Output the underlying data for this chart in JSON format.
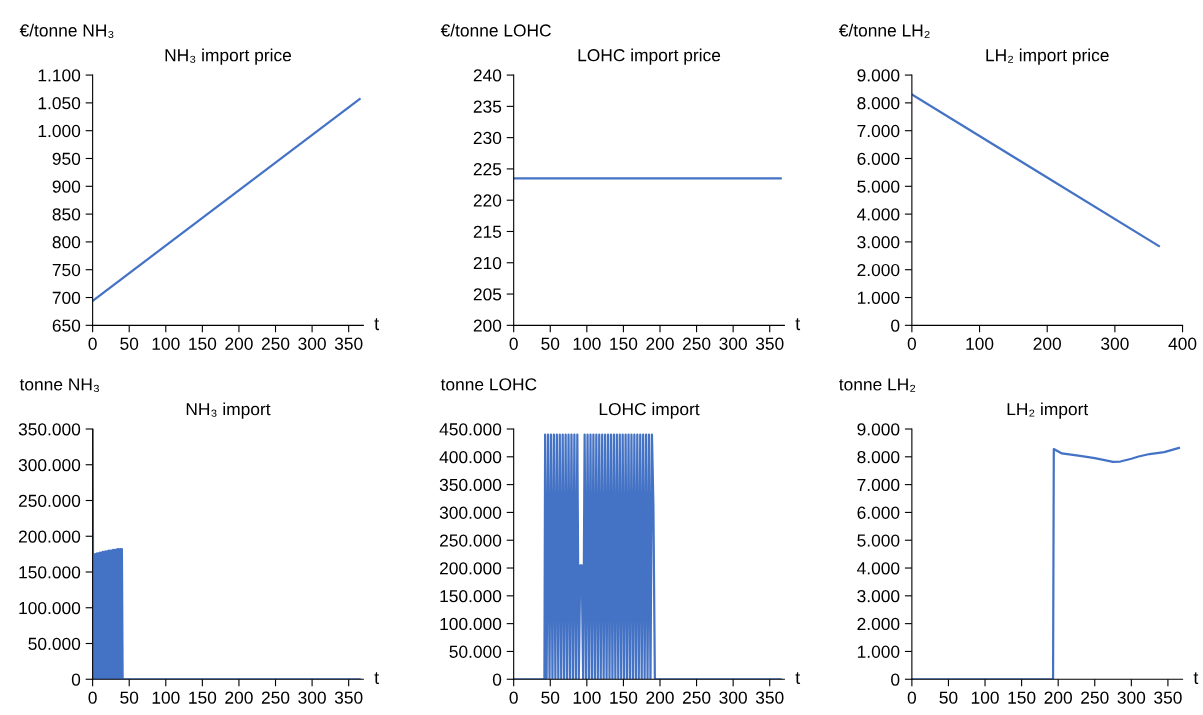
{
  "chart_data": [
    {
      "type": "line",
      "title": "NH₃ import price",
      "ylabel": "€/tonne NH₃",
      "xlabel": "t",
      "grid": false,
      "legend": false,
      "x": [
        0,
        365
      ],
      "series": [
        {
          "color": "#4472c4",
          "values": [
            694,
            1057
          ]
        }
      ],
      "xlim": [
        0,
        370
      ],
      "xticks": [
        0,
        50,
        100,
        150,
        200,
        250,
        300,
        350
      ],
      "ylim": [
        650,
        1100
      ],
      "yticks": [
        650,
        700,
        750,
        800,
        850,
        900,
        950,
        {
          "value": 1000,
          "label": "1.000"
        },
        {
          "value": 1050,
          "label": "1.050"
        },
        {
          "value": 1100,
          "label": "1.100"
        }
      ]
    },
    {
      "type": "line",
      "title": "LOHC import price",
      "ylabel": "€/tonne LOHC",
      "xlabel": "t",
      "grid": false,
      "legend": false,
      "x": [
        0,
        365
      ],
      "series": [
        {
          "color": "#4472c4",
          "values": [
            223.5,
            223.5
          ]
        }
      ],
      "xlim": [
        0,
        370
      ],
      "xticks": [
        0,
        50,
        100,
        150,
        200,
        250,
        300,
        350
      ],
      "ylim": [
        200,
        240
      ],
      "yticks": [
        200,
        205,
        210,
        215,
        220,
        225,
        230,
        235,
        240
      ]
    },
    {
      "type": "line",
      "title": "LH₂ import price",
      "ylabel": "€/tonne LH₂",
      "grid": false,
      "legend": false,
      "x": [
        0,
        365
      ],
      "series": [
        {
          "color": "#4472c4",
          "values": [
            8300,
            2850
          ]
        }
      ],
      "xlim": [
        0,
        400
      ],
      "xticks": [
        0,
        100,
        200,
        300,
        400
      ],
      "ylim": [
        0,
        9000
      ],
      "yticks": [
        0,
        {
          "value": 1000,
          "label": "1.000"
        },
        {
          "value": 2000,
          "label": "2.000"
        },
        {
          "value": 3000,
          "label": "3.000"
        },
        {
          "value": 4000,
          "label": "4.000"
        },
        {
          "value": 5000,
          "label": "5.000"
        },
        {
          "value": 6000,
          "label": "6.000"
        },
        {
          "value": 7000,
          "label": "7.000"
        },
        {
          "value": 8000,
          "label": "8.000"
        },
        {
          "value": 9000,
          "label": "9.000"
        }
      ]
    },
    {
      "type": "line",
      "title": "NH₃ import",
      "ylabel": "tonne NH₃",
      "xlabel": "t",
      "grid": false,
      "legend": false,
      "x": [
        0,
        1,
        2,
        3,
        4,
        5,
        6,
        7,
        8,
        9,
        10,
        11,
        12,
        13,
        14,
        15,
        16,
        17,
        18,
        19,
        20,
        21,
        22,
        23,
        24,
        25,
        26,
        27,
        28,
        29,
        30,
        31,
        32,
        33,
        34,
        35,
        36,
        37,
        38,
        39,
        40,
        41,
        365
      ],
      "series": [
        {
          "color": "#4472c4",
          "values": [
            350000,
            0,
            175000,
            0,
            175000,
            0,
            176000,
            0,
            176000,
            0,
            177000,
            0,
            177000,
            0,
            178000,
            0,
            178000,
            0,
            179000,
            0,
            179000,
            0,
            180000,
            0,
            180000,
            0,
            180000,
            0,
            181000,
            0,
            181000,
            0,
            181000,
            0,
            182000,
            0,
            182000,
            0,
            182000,
            0,
            182000,
            0,
            0
          ]
        }
      ],
      "xlim": [
        0,
        370
      ],
      "xticks": [
        0,
        50,
        100,
        150,
        200,
        250,
        300,
        350
      ],
      "ylim": [
        0,
        350000
      ],
      "yticks": [
        0,
        {
          "value": 50000,
          "label": "50.000"
        },
        {
          "value": 100000,
          "label": "100.000"
        },
        {
          "value": 150000,
          "label": "150.000"
        },
        {
          "value": 200000,
          "label": "200.000"
        },
        {
          "value": 250000,
          "label": "250.000"
        },
        {
          "value": 300000,
          "label": "300.000"
        },
        {
          "value": 350000,
          "label": "350.000"
        }
      ]
    },
    {
      "type": "line",
      "title": "LOHC import",
      "ylabel": "tonne LOHC",
      "xlabel": "t",
      "grid": false,
      "legend": false,
      "x": [
        0,
        42,
        43,
        45,
        47,
        49,
        51,
        53,
        55,
        57,
        59,
        61,
        63,
        65,
        67,
        69,
        71,
        73,
        75,
        77,
        79,
        81,
        83,
        85,
        87,
        89,
        91,
        93,
        95,
        97,
        99,
        101,
        103,
        105,
        107,
        109,
        111,
        113,
        115,
        117,
        119,
        121,
        123,
        125,
        127,
        129,
        131,
        133,
        135,
        137,
        139,
        141,
        143,
        145,
        147,
        149,
        151,
        153,
        155,
        157,
        159,
        161,
        163,
        165,
        167,
        169,
        171,
        173,
        175,
        177,
        179,
        181,
        183,
        185,
        187,
        189,
        191,
        193,
        365
      ],
      "series": [
        {
          "color": "#4472c4",
          "values": [
            0,
            0,
            440000,
            0,
            440000,
            0,
            440000,
            0,
            440000,
            0,
            440000,
            0,
            440000,
            0,
            440000,
            0,
            440000,
            0,
            440000,
            0,
            440000,
            0,
            440000,
            0,
            440000,
            0,
            205000,
            205000,
            0,
            440000,
            0,
            440000,
            0,
            440000,
            0,
            440000,
            0,
            440000,
            0,
            440000,
            0,
            440000,
            0,
            440000,
            0,
            440000,
            0,
            440000,
            0,
            440000,
            0,
            440000,
            0,
            440000,
            0,
            440000,
            0,
            440000,
            0,
            440000,
            0,
            440000,
            0,
            440000,
            0,
            440000,
            0,
            440000,
            0,
            440000,
            0,
            440000,
            0,
            440000,
            0,
            440000,
            312000,
            0,
            0
          ]
        }
      ],
      "xlim": [
        0,
        370
      ],
      "xticks": [
        0,
        50,
        100,
        150,
        200,
        250,
        300,
        350
      ],
      "ylim": [
        0,
        450000
      ],
      "yticks": [
        0,
        {
          "value": 50000,
          "label": "50.000"
        },
        {
          "value": 100000,
          "label": "100.000"
        },
        {
          "value": 150000,
          "label": "150.000"
        },
        {
          "value": 200000,
          "label": "200.000"
        },
        {
          "value": 250000,
          "label": "250.000"
        },
        {
          "value": 300000,
          "label": "300.000"
        },
        {
          "value": 350000,
          "label": "350.000"
        },
        {
          "value": 400000,
          "label": "400.000"
        },
        {
          "value": 450000,
          "label": "450.000"
        }
      ]
    },
    {
      "type": "line",
      "title": "LH₂ import",
      "ylabel": "tonne LH₂",
      "xlabel": "t",
      "grid": false,
      "legend": false,
      "x": [
        0,
        193,
        194,
        205,
        230,
        250,
        265,
        275,
        285,
        300,
        310,
        325,
        345,
        365
      ],
      "series": [
        {
          "color": "#4472c4",
          "values": [
            0,
            0,
            8280,
            8120,
            8030,
            7950,
            7870,
            7820,
            7830,
            7930,
            8010,
            8100,
            8170,
            8320
          ]
        }
      ],
      "xlim": [
        0,
        370
      ],
      "xticks": [
        0,
        50,
        100,
        150,
        200,
        250,
        300,
        350
      ],
      "ylim": [
        0,
        9000
      ],
      "yticks": [
        0,
        {
          "value": 1000,
          "label": "1.000"
        },
        {
          "value": 2000,
          "label": "2.000"
        },
        {
          "value": 3000,
          "label": "3.000"
        },
        {
          "value": 4000,
          "label": "4.000"
        },
        {
          "value": 5000,
          "label": "5.000"
        },
        {
          "value": 6000,
          "label": "6.000"
        },
        {
          "value": 7000,
          "label": "7.000"
        },
        {
          "value": 8000,
          "label": "8.000"
        },
        {
          "value": 9000,
          "label": "9.000"
        }
      ]
    }
  ]
}
